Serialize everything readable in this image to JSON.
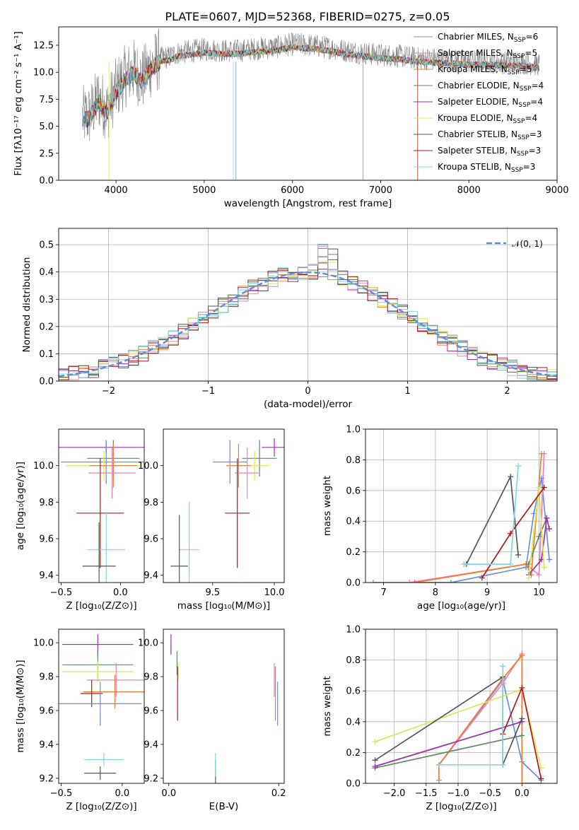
{
  "figure": {
    "title": "PLATE=0607, MJD=52368, FIBERID=0275, z=0.05"
  },
  "colors": {
    "Chabrier MILES": "#6a8fd8",
    "Salpeter MILES": "#ea7fbd",
    "Kroupa MILES": "#ee7d31",
    "Chabrier ELODIE": "#5d8a5d",
    "Salpeter ELODIE": "#9c2dab",
    "Kroupa ELODIE": "#d8e85a",
    "Chabrier STELIB": "#555555",
    "Salpeter STELIB": "#b01818",
    "Kroupa STELIB": "#7fd9d9",
    "model_curve": "#5b8fd6"
  },
  "chart_data": [
    {
      "id": "spectrum",
      "type": "line",
      "xlabel": "wavelength [Angstrom, rest frame]",
      "ylabel": "Flux [fλ10⁻¹⁷ erg cm⁻² s⁻¹ A⁻¹]",
      "xlim": [
        3350,
        9000
      ],
      "ylim": [
        0,
        14.2
      ],
      "xticks": [
        "4000",
        "5000",
        "6000",
        "7000",
        "8000",
        "9000"
      ],
      "yticks": [
        "0.0",
        "2.5",
        "5.0",
        "7.5",
        "10.0",
        "12.5"
      ],
      "legend_position": "right",
      "legend": [
        {
          "name": "Chabrier MILES",
          "nssp": "6"
        },
        {
          "name": "Salpeter MILES",
          "nssp": "5"
        },
        {
          "name": "Kroupa MILES",
          "nssp": "5"
        },
        {
          "name": "Chabrier ELODIE",
          "nssp": "4"
        },
        {
          "name": "Salpeter ELODIE",
          "nssp": "4"
        },
        {
          "name": "Kroupa ELODIE",
          "nssp": "4"
        },
        {
          "name": "Chabrier STELIB",
          "nssp": "3"
        },
        {
          "name": "Salpeter STELIB",
          "nssp": "3"
        },
        {
          "name": "Kroupa STELIB",
          "nssp": "3"
        }
      ],
      "data_wavelength": [
        3620,
        3700,
        3800,
        3900,
        4000,
        4100,
        4200,
        4300,
        4400,
        4500,
        4600,
        4700,
        4800,
        4900,
        5000,
        5200,
        5400,
        5600,
        5800,
        6000,
        6200,
        6400,
        6600,
        6800,
        7000,
        7200,
        7400,
        7600,
        7800,
        8000,
        8200,
        8400,
        8600,
        8800
      ],
      "data_flux": [
        5.8,
        6.0,
        7.6,
        6.5,
        8.4,
        9.6,
        10.2,
        9.4,
        10.6,
        11.3,
        11.4,
        11.8,
        11.9,
        12.0,
        12.1,
        12.0,
        12.0,
        12.2,
        12.3,
        12.6,
        12.5,
        12.3,
        12.0,
        11.8,
        11.6,
        11.5,
        11.3,
        11.2,
        11.1,
        11.0,
        11.0,
        10.9,
        10.9,
        10.7
      ]
    },
    {
      "id": "residuals",
      "type": "histogram",
      "xlabel": "(data-model)/error",
      "ylabel": "Normed distribution",
      "xlim": [
        -2.5,
        2.5
      ],
      "ylim": [
        0,
        0.56
      ],
      "xticks": [
        "−2",
        "−1",
        "0",
        "1",
        "2"
      ],
      "yticks": [
        "0.0",
        "0.1",
        "0.2",
        "0.3",
        "0.4",
        "0.5"
      ],
      "grid": true,
      "legend": "𝒩(0, 1)",
      "legend_position": "top-right",
      "bin_width": 0.1
    },
    {
      "id": "age_vs_Z",
      "type": "errorbar",
      "xlabel": "Z [log₁₀(Z/Z⊙)]",
      "ylabel": "age  [log₁₀(age/yr)]",
      "xlim": [
        -0.52,
        0.2
      ],
      "ylim": [
        9.36,
        10.2
      ],
      "xticks": [
        "−0.5",
        "0.0"
      ],
      "yticks": [
        "9.4",
        "9.6",
        "9.8",
        "10.0"
      ],
      "points": [
        {
          "series": "Salpeter ELODIE",
          "x": -0.12,
          "xerr": 0.4,
          "y": 10.1,
          "yerr": 0.03
        },
        {
          "series": "Chabrier ELODIE",
          "x": -0.06,
          "xerr": 0.22,
          "y": 10.04,
          "yerr": 0.1
        },
        {
          "series": "Chabrier MILES",
          "x": -0.12,
          "xerr": 0.38,
          "y": 10.02,
          "yerr": 0.12
        },
        {
          "series": "Kroupa ELODIE",
          "x": -0.14,
          "xerr": 0.32,
          "y": 10.0,
          "yerr": 0.08
        },
        {
          "series": "Kroupa MILES",
          "x": -0.06,
          "xerr": 0.2,
          "y": 10.0,
          "yerr": 0.12
        },
        {
          "series": "Salpeter MILES",
          "x": -0.07,
          "xerr": 0.2,
          "y": 9.96,
          "yerr": 0.14
        },
        {
          "series": "Salpeter STELIB",
          "x": -0.17,
          "xerr": 0.2,
          "y": 9.74,
          "yerr": 0.3
        },
        {
          "series": "Kroupa STELIB",
          "x": -0.12,
          "xerr": 0.16,
          "y": 9.54,
          "yerr": 0.2
        },
        {
          "series": "Chabrier STELIB",
          "x": -0.18,
          "xerr": 0.14,
          "y": 9.45,
          "yerr": 0.24
        }
      ]
    },
    {
      "id": "age_vs_mass",
      "type": "errorbar",
      "xlabel": "mass [log₁₀(M/M⊙)]",
      "xlim": [
        9.1,
        10.08
      ],
      "ylim": [
        9.36,
        10.2
      ],
      "xticks": [
        "9.5",
        "10.0"
      ],
      "yticks": [
        "9.4",
        "9.6",
        "9.8",
        "10.0"
      ],
      "points": [
        {
          "series": "Salpeter ELODIE",
          "x": 10.0,
          "xerr": 0.1,
          "y": 10.1,
          "yerr": 0.05
        },
        {
          "series": "Chabrier ELODIE",
          "x": 9.88,
          "xerr": 0.14,
          "y": 10.04,
          "yerr": 0.1
        },
        {
          "series": "Chabrier MILES",
          "x": 9.64,
          "xerr": 0.14,
          "y": 10.02,
          "yerr": 0.12
        },
        {
          "series": "Kroupa ELODIE",
          "x": 9.84,
          "xerr": 0.12,
          "y": 10.0,
          "yerr": 0.08
        },
        {
          "series": "Kroupa MILES",
          "x": 9.71,
          "xerr": 0.1,
          "y": 10.0,
          "yerr": 0.12
        },
        {
          "series": "Salpeter MILES",
          "x": 9.78,
          "xerr": 0.1,
          "y": 9.96,
          "yerr": 0.14
        },
        {
          "series": "Salpeter STELIB",
          "x": 9.7,
          "xerr": 0.1,
          "y": 9.74,
          "yerr": 0.3
        },
        {
          "series": "Kroupa STELIB",
          "x": 9.31,
          "xerr": 0.08,
          "y": 9.54,
          "yerr": 0.26
        },
        {
          "series": "Chabrier STELIB",
          "x": 9.23,
          "xerr": 0.07,
          "y": 9.45,
          "yerr": 0.28
        }
      ]
    },
    {
      "id": "weight_vs_age",
      "type": "line",
      "xlabel": "age  [log₁₀(age/yr)]",
      "ylabel": "mass weight",
      "xlim": [
        6.65,
        10.35
      ],
      "ylim": [
        0,
        1.0
      ],
      "xticks": [
        "7",
        "8",
        "9",
        "10"
      ],
      "yticks": [
        "0.0",
        "0.2",
        "0.4",
        "0.6",
        "0.8",
        "1.0"
      ],
      "grid": true,
      "series": [
        {
          "name": "Chabrier MILES",
          "x": [
            6.8,
            8.3,
            9.75,
            9.9,
            10.05,
            10.2
          ],
          "y": [
            0.0,
            0.0,
            0.1,
            0.45,
            0.68,
            0.15
          ]
        },
        {
          "name": "Salpeter MILES",
          "x": [
            7.5,
            9.75,
            10.0,
            10.1
          ],
          "y": [
            0.0,
            0.12,
            0.05,
            0.84
          ]
        },
        {
          "name": "Kroupa MILES",
          "x": [
            7.6,
            9.75,
            9.85,
            10.05
          ],
          "y": [
            0.0,
            0.12,
            0.05,
            0.84
          ]
        },
        {
          "name": "Chabrier ELODIE",
          "x": [
            9.8,
            10.0,
            10.15
          ],
          "y": [
            0.12,
            0.3,
            0.42
          ]
        },
        {
          "name": "Salpeter ELODIE",
          "x": [
            9.8,
            10.05,
            10.15,
            10.2
          ],
          "y": [
            0.05,
            0.15,
            0.42,
            0.35
          ]
        },
        {
          "name": "Kroupa ELODIE",
          "x": [
            9.8,
            10.0,
            10.1
          ],
          "y": [
            0.03,
            0.62,
            0.1
          ]
        },
        {
          "name": "Chabrier STELIB",
          "x": [
            8.6,
            9.45,
            9.6
          ],
          "y": [
            0.12,
            0.69,
            0.18
          ]
        },
        {
          "name": "Salpeter STELIB",
          "x": [
            8.9,
            9.45,
            10.1
          ],
          "y": [
            0.03,
            0.32,
            0.62
          ]
        },
        {
          "name": "Kroupa STELIB",
          "x": [
            8.55,
            9.45,
            9.6
          ],
          "y": [
            0.12,
            0.12,
            0.76
          ]
        }
      ]
    },
    {
      "id": "mass_vs_Z",
      "type": "errorbar",
      "xlabel": "Z [log₁₀(Z/Z⊙)]",
      "ylabel": "mass [log₁₀(M/M⊙)]",
      "xlim": [
        -0.52,
        0.18
      ],
      "ylim": [
        9.17,
        10.08
      ],
      "xticks": [
        "−0.5",
        "0.0"
      ],
      "yticks": [
        "9.2",
        "9.4",
        "9.6",
        "9.8",
        "10.0"
      ],
      "points": [
        {
          "series": "Salpeter ELODIE",
          "x": -0.2,
          "xerr": 0.29,
          "y": 9.99,
          "yerr": 0.06
        },
        {
          "series": "Chabrier ELODIE",
          "x": -0.2,
          "xerr": 0.29,
          "y": 9.87,
          "yerr": 0.08
        },
        {
          "series": "Kroupa ELODIE",
          "x": -0.2,
          "xerr": 0.29,
          "y": 9.83,
          "yerr": 0.06
        },
        {
          "series": "Salpeter MILES",
          "x": -0.05,
          "xerr": 0.24,
          "y": 9.78,
          "yerr": 0.1
        },
        {
          "series": "Kroupa MILES",
          "x": -0.06,
          "xerr": 0.26,
          "y": 9.71,
          "yerr": 0.1
        },
        {
          "series": "Salpeter STELIB",
          "x": -0.25,
          "xerr": 0.09,
          "y": 9.7,
          "yerr": 0.08
        },
        {
          "series": "Chabrier MILES",
          "x": -0.18,
          "xerr": 0.34,
          "y": 9.64,
          "yerr": 0.13
        },
        {
          "series": "Kroupa STELIB",
          "x": -0.15,
          "xerr": 0.16,
          "y": 9.31,
          "yerr": 0.04
        },
        {
          "series": "Chabrier STELIB",
          "x": -0.18,
          "xerr": 0.13,
          "y": 9.23,
          "yerr": 0.04
        }
      ]
    },
    {
      "id": "mass_vs_ebv",
      "type": "errorbar",
      "xlabel": "E(B-V)",
      "xlim": [
        -0.01,
        0.21
      ],
      "ylim": [
        9.17,
        10.08
      ],
      "xticks": [
        "0.0",
        "0.2"
      ],
      "yticks": [
        "9.2",
        "9.4",
        "9.6",
        "9.8",
        "10.0"
      ],
      "points": [
        {
          "series": "Salpeter ELODIE",
          "x": 0.004,
          "xerr": 0.0,
          "y": 9.99,
          "yerr": 0.06
        },
        {
          "series": "Chabrier ELODIE",
          "x": 0.015,
          "xerr": 0.0,
          "y": 9.88,
          "yerr": 0.07
        },
        {
          "series": "Kroupa ELODIE",
          "x": 0.017,
          "xerr": 0.0,
          "y": 9.83,
          "yerr": 0.05
        },
        {
          "series": "Salpeter STELIB",
          "x": 0.016,
          "xerr": 0.0,
          "y": 9.7,
          "yerr": 0.16
        },
        {
          "series": "Chabrier STELIB",
          "x": 0.085,
          "xerr": 0.0,
          "y": 9.24,
          "yerr": 0.07
        },
        {
          "series": "Kroupa STELIB",
          "x": 0.085,
          "xerr": 0.0,
          "y": 9.28,
          "yerr": 0.07
        },
        {
          "series": "Salpeter MILES",
          "x": 0.192,
          "xerr": 0.0,
          "y": 9.78,
          "yerr": 0.1
        },
        {
          "series": "Kroupa MILES",
          "x": 0.194,
          "xerr": 0.0,
          "y": 9.7,
          "yerr": 0.16
        },
        {
          "series": "Chabrier MILES",
          "x": 0.198,
          "xerr": 0.0,
          "y": 9.64,
          "yerr": 0.13
        }
      ]
    },
    {
      "id": "weight_vs_Z",
      "type": "line",
      "xlabel": "Z [log₁₀(Z/Z⊙)]",
      "ylabel": "mass weight",
      "xlim": [
        -2.45,
        0.55
      ],
      "ylim": [
        0,
        1.0
      ],
      "xticks": [
        "−2.0",
        "−1.5",
        "−1.0",
        "−0.5",
        "0.0"
      ],
      "yticks": [
        "0.0",
        "0.2",
        "0.4",
        "0.6",
        "0.8",
        "1.0"
      ],
      "grid": true,
      "series": [
        {
          "name": "Chabrier MILES",
          "x": [
            -1.3,
            -0.3,
            0.0,
            0.3
          ],
          "y": [
            0.12,
            0.67,
            0.14,
            0.02
          ]
        },
        {
          "name": "Salpeter MILES",
          "x": [
            -1.3,
            -0.3,
            0.0
          ],
          "y": [
            0.12,
            0.65,
            0.84
          ]
        },
        {
          "name": "Kroupa MILES",
          "x": [
            -1.3,
            -1.3,
            -0.3,
            0.0,
            0.0,
            0.3
          ],
          "y": [
            0.02,
            0.12,
            0.68,
            0.83,
            0.0,
            0.0
          ]
        },
        {
          "name": "Chabrier ELODIE",
          "x": [
            -2.3,
            0.0
          ],
          "y": [
            0.1,
            0.31
          ]
        },
        {
          "name": "Salpeter ELODIE",
          "x": [
            -2.3,
            0.0
          ],
          "y": [
            0.11,
            0.4
          ]
        },
        {
          "name": "Kroupa ELODIE",
          "x": [
            -2.3,
            0.0,
            0.3
          ],
          "y": [
            0.27,
            0.61,
            0.1
          ]
        },
        {
          "name": "Chabrier STELIB",
          "x": [
            -2.3,
            -0.3,
            -0.3,
            0.0
          ],
          "y": [
            0.15,
            0.69,
            0.12,
            0.42
          ]
        },
        {
          "name": "Salpeter STELIB",
          "x": [
            -0.3,
            0.0,
            0.3
          ],
          "y": [
            0.32,
            0.62,
            0.03
          ]
        },
        {
          "name": "Kroupa STELIB",
          "x": [
            -1.3,
            -0.3,
            -0.3
          ],
          "y": [
            0.12,
            0.12,
            0.76
          ]
        }
      ]
    }
  ]
}
